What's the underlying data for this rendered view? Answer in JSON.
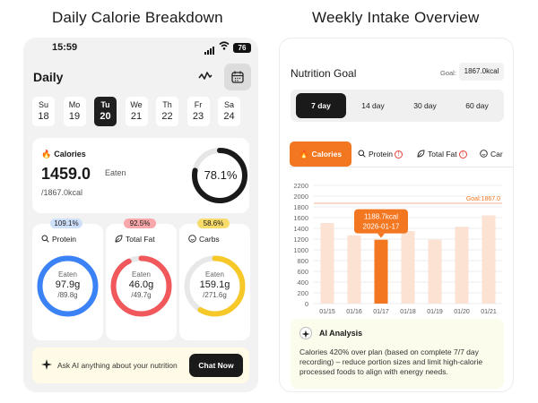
{
  "headings": {
    "left": "Daily Calorie Breakdown",
    "right": "Weekly Intake Overview"
  },
  "left_phone": {
    "status": {
      "time": "15:59",
      "battery": "76"
    },
    "title": "Daily",
    "days": [
      {
        "name": "Su",
        "date": "18",
        "selected": false
      },
      {
        "name": "Mo",
        "date": "19",
        "selected": false
      },
      {
        "name": "Tu",
        "date": "20",
        "selected": true
      },
      {
        "name": "We",
        "date": "21",
        "selected": false
      },
      {
        "name": "Th",
        "date": "22",
        "selected": false
      },
      {
        "name": "Fr",
        "date": "23",
        "selected": false
      },
      {
        "name": "Sa",
        "date": "24",
        "selected": false
      }
    ],
    "calories": {
      "label": "Calories",
      "value": "1459.0",
      "eaten_label": "Eaten",
      "goal": "/1867.0kcal",
      "percent": "78.1%",
      "fraction": 0.781
    },
    "macros": [
      {
        "id": "protein",
        "badge": "109.1%",
        "label": "Protein",
        "eaten_label": "Eaten",
        "value": "97.9g",
        "goal": "/89.8g",
        "color": "#3b82f6",
        "badge_color": "#cfe0fb",
        "fraction": 1.0,
        "icon": "search-icon"
      },
      {
        "id": "fat",
        "badge": "92.5%",
        "label": "Total Fat",
        "eaten_label": "Eaten",
        "value": "46.0g",
        "goal": "/49.7g",
        "color": "#f0585c",
        "badge_color": "#f8a8aa",
        "fraction": 0.925,
        "icon": "leaf-icon"
      },
      {
        "id": "carbs",
        "badge": "58.6%",
        "label": "Carbs",
        "eaten_label": "Eaten",
        "value": "159.1g",
        "goal": "/271.6g",
        "color": "#f6c928",
        "badge_color": "#f8dc6b",
        "fraction": 0.586,
        "icon": "smile-icon"
      }
    ],
    "ai_prompt": "Ask AI anything about your nutrition",
    "chat_button": "Chat Now"
  },
  "right_phone": {
    "title": "Nutrition Goal",
    "goal_label": "Goal:",
    "goal_value": "1867.0kcal",
    "ranges": [
      {
        "label": "7 day",
        "selected": true
      },
      {
        "label": "14 day",
        "selected": false
      },
      {
        "label": "30 day",
        "selected": false
      },
      {
        "label": "60 day",
        "selected": false
      }
    ],
    "tabs": [
      {
        "label": "Calories",
        "selected": true,
        "warn": false
      },
      {
        "label": "Protein",
        "selected": false,
        "warn": true
      },
      {
        "label": "Total Fat",
        "selected": false,
        "warn": true
      },
      {
        "label": "Car",
        "selected": false,
        "warn": false
      }
    ],
    "ai_title": "AI Analysis",
    "ai_text": "Calories 420% over plan (based on complete 7/7 day recording) – reduce portion sizes and limit high-calorie processed foods to align with energy needs."
  },
  "chart_data": {
    "type": "bar",
    "categories": [
      "01/15",
      "01/16",
      "01/17",
      "01/18",
      "01/19",
      "01/20",
      "01/21"
    ],
    "values": [
      1500,
      1270,
      1188.7,
      1350,
      1190,
      1430,
      1640
    ],
    "yticks": [
      0,
      200,
      400,
      600,
      800,
      1000,
      1200,
      1400,
      1600,
      1800,
      2000,
      2200
    ],
    "ylim": [
      0,
      2200
    ],
    "goal": 1867,
    "goal_label": "Goal:1867.0",
    "highlight_index": 2,
    "tooltip": {
      "value": "1188.7kcal",
      "date": "2026-01-17"
    },
    "colors": {
      "bar": "#fbe2d2",
      "highlight": "#f37620",
      "goal": "#f2b48c"
    }
  }
}
